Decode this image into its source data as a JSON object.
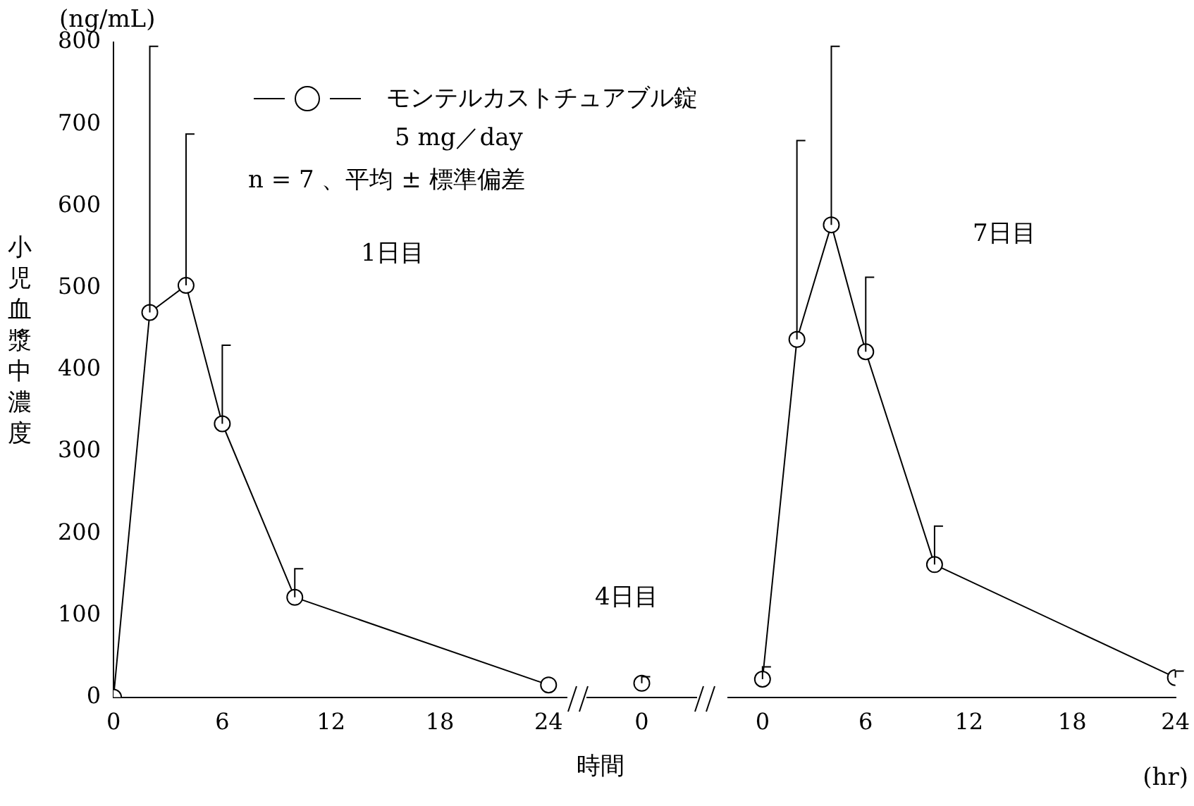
{
  "chart_data": [
    {
      "type": "line",
      "ylabel": "小児血漿中濃度",
      "x": [
        0,
        2,
        4,
        6,
        10,
        24
      ],
      "series": [
        {
          "name": "モンテルカストチュアブル錠",
          "color": "#000000",
          "values": [
            0,
            470,
            503,
            334,
            122,
            15
          ],
          "errors": [
            null,
            [
              470,
              795
            ],
            [
              503,
              688
            ],
            [
              334,
              430
            ],
            [
              122,
              157
            ],
            null
          ]
        }
      ],
      "xlim": [
        0,
        25
      ],
      "xticks": [
        0,
        6,
        12,
        18,
        24
      ],
      "ylim": [
        0,
        800
      ],
      "yticks": [
        0,
        100,
        200,
        300,
        400,
        500,
        600,
        700,
        800
      ],
      "legend": "top",
      "marker": "circle",
      "line_style": "solid",
      "annotations": [
        "(ng/mL)",
        "5 mg／day",
        "n = 7 、平均 ± 標準偏差",
        "1日目"
      ]
    },
    {
      "type": "line",
      "xlabel": "時間",
      "categories": [
        "0"
      ],
      "series": [
        {
          "color": "#000000",
          "values": [
            17
          ],
          "errors": [
            [
              17,
              25
            ]
          ]
        }
      ],
      "ylim": [
        0,
        800
      ],
      "tick_labels": "x",
      "marker": "circle",
      "line_style": "solid",
      "annotations": [
        "4日目"
      ]
    },
    {
      "type": "line",
      "x": [
        0,
        2,
        4,
        6,
        10,
        24
      ],
      "series": [
        {
          "color": "#000000",
          "values": [
            22,
            437,
            577,
            422,
            162,
            24
          ],
          "errors": [
            [
              22,
              37
            ],
            [
              437,
              680
            ],
            [
              577,
              795
            ],
            [
              422,
              513
            ],
            [
              162,
              209
            ],
            [
              24,
              32
            ]
          ]
        }
      ],
      "xlim": [
        -2,
        24
      ],
      "xticks": [
        0,
        6,
        12,
        18,
        24
      ],
      "ylim": [
        0,
        800
      ],
      "tick_labels": "x",
      "marker": "circle",
      "line_style": "solid",
      "annotations": [
        "7日目",
        "(hr)"
      ]
    }
  ]
}
